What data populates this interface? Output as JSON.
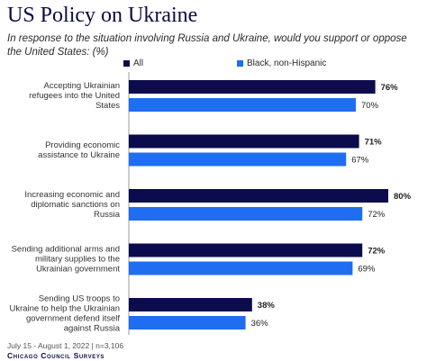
{
  "header": {
    "title": "US Policy on Ukraine",
    "subtitle": "In response to the situation involving Russia and Ukraine, would you support or oppose the United States: (%)"
  },
  "colors": {
    "all": "#0b0b4d",
    "black_non_hispanic": "#1f6df0",
    "title": "#0c0c44"
  },
  "chart_data": {
    "type": "bar",
    "orientation": "horizontal",
    "categories": [
      [
        "Accepting Ukrainian",
        "refugees into the United",
        "States"
      ],
      [
        "Providing economic",
        "assistance to Ukraine"
      ],
      [
        "Increasing economic and",
        "diplomatic sanctions on",
        "Russia"
      ],
      [
        "Sending additional arms and",
        "military supplies to the",
        "Ukrainian government"
      ],
      [
        "Sending US troops to",
        "Ukraine to help the Ukrainian",
        "government defend itself",
        "against Russia"
      ]
    ],
    "series": [
      {
        "name": "All",
        "values": [
          76,
          71,
          80,
          72,
          38
        ],
        "labels": [
          "76%",
          "71%",
          "80%",
          "72%",
          "38%"
        ]
      },
      {
        "name": "Black, non-Hispanic",
        "values": [
          70,
          67,
          72,
          69,
          36
        ],
        "labels": [
          "70%",
          "67%",
          "72%",
          "69%",
          "36%"
        ]
      }
    ],
    "xlim": [
      0,
      100
    ],
    "legend_position": "top",
    "grid": false
  },
  "footer": {
    "date": "July 15 - August 1, 2022 | n=3,106",
    "brand": "Chicago Council Surveys"
  }
}
